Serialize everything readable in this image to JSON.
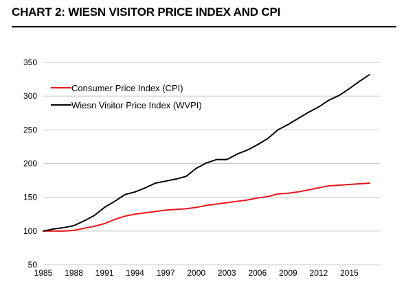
{
  "title": "CHART 2: WIESN VISITOR PRICE INDEX AND CPI",
  "chart_data": {
    "type": "line",
    "title": "CHART 2: WIESN VISITOR PRICE INDEX AND CPI",
    "xlabel": "",
    "ylabel": "",
    "xlim": [
      1985,
      2018
    ],
    "ylim": [
      50,
      350
    ],
    "yticks": [
      50,
      100,
      150,
      200,
      250,
      300,
      350
    ],
    "xticks": [
      1985,
      1988,
      1991,
      1994,
      1997,
      2000,
      2003,
      2006,
      2009,
      2012,
      2015
    ],
    "grid": "horizontal",
    "legend": "top-left",
    "x": [
      1985,
      1986,
      1987,
      1988,
      1989,
      1990,
      1991,
      1992,
      1993,
      1994,
      1995,
      1996,
      1997,
      1998,
      1999,
      2000,
      2001,
      2002,
      2003,
      2004,
      2005,
      2006,
      2007,
      2008,
      2009,
      2010,
      2011,
      2012,
      2013,
      2014,
      2015,
      2016,
      2017
    ],
    "series": [
      {
        "name": "Consumer Price Index (CPI)",
        "color": "#e8141b",
        "values": [
          100,
          100,
          100,
          101,
          104,
          107,
          111,
          117,
          122,
          125,
          127,
          129,
          131,
          132,
          133,
          135,
          138,
          140,
          142,
          144,
          146,
          149,
          151,
          155,
          156,
          158,
          161,
          164,
          167,
          168,
          169,
          170,
          171
        ]
      },
      {
        "name": "Wiesn Visitor Price Index (WVPI)",
        "color": "#000000",
        "values": [
          100,
          103,
          105,
          108,
          115,
          123,
          135,
          144,
          154,
          158,
          164,
          171,
          174,
          177,
          181,
          193,
          201,
          206,
          206,
          214,
          220,
          228,
          237,
          250,
          258,
          267,
          276,
          284,
          294,
          301,
          311,
          322,
          332
        ]
      }
    ]
  }
}
